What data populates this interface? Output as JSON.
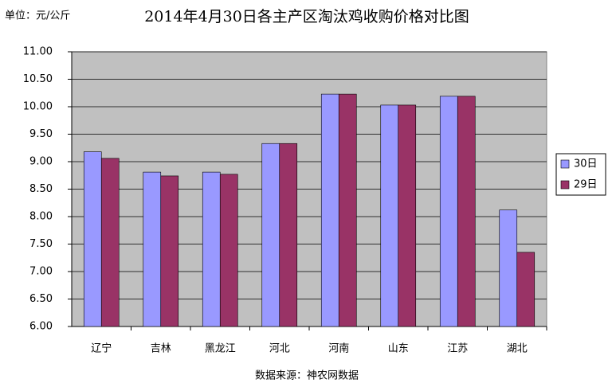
{
  "chart_data": {
    "type": "bar",
    "title": "2014年4月30日各主产区淘汰鸡收购价格对比图",
    "unit_label": "单位：元/公斤",
    "source": "数据来源：神农网数据",
    "categories": [
      "辽宁",
      "吉林",
      "黑龙江",
      "河北",
      "河南",
      "山东",
      "江苏",
      "湖北"
    ],
    "series": [
      {
        "name": "30日",
        "color": "#9999ff",
        "values": [
          9.18,
          8.81,
          8.81,
          9.33,
          10.23,
          10.03,
          10.19,
          8.12
        ]
      },
      {
        "name": "29日",
        "color": "#993366",
        "values": [
          9.06,
          8.74,
          8.77,
          9.33,
          10.23,
          10.03,
          10.19,
          7.35
        ]
      }
    ],
    "ylim": [
      6,
      11
    ],
    "yticks": [
      {
        "value": 6,
        "label": "6.00"
      },
      {
        "value": 6.5,
        "label": "6.50"
      },
      {
        "value": 7,
        "label": "7.00"
      },
      {
        "value": 7.5,
        "label": "7.50"
      },
      {
        "value": 8,
        "label": "8.00"
      },
      {
        "value": 8.5,
        "label": "8.50"
      },
      {
        "value": 9,
        "label": "9.00"
      },
      {
        "value": 9.5,
        "label": "9.50"
      },
      {
        "value": 10,
        "label": "10.00"
      },
      {
        "value": 10.5,
        "label": "10.50"
      },
      {
        "value": 11,
        "label": "11.00"
      }
    ],
    "grid": true,
    "legend": "right"
  }
}
